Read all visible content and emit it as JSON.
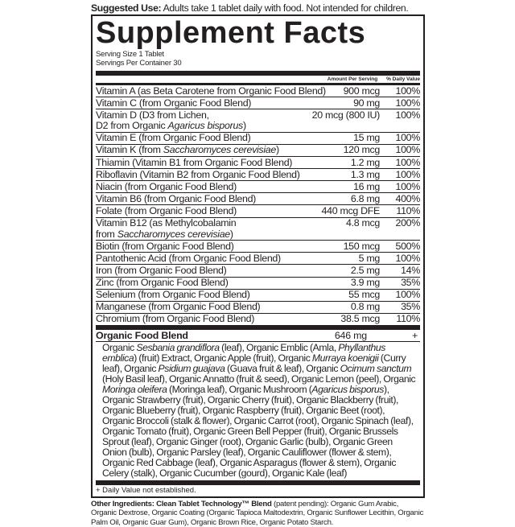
{
  "suggested_use": {
    "label": "Suggested Use:",
    "text": " Adults take 1 tablet daily with food. Not intended for children."
  },
  "title": "Supplement Facts",
  "serving_size": "Serving Size 1 Tablet",
  "servings_per_container": "Servings Per Container 30",
  "header": {
    "amount": "Amount Per Serving",
    "dv": "% Daily Value"
  },
  "rows": [
    {
      "name": "Vitamin A (as Beta Carotene from Organic Food Blend)",
      "amount": "900 mcg",
      "dv": "100%"
    },
    {
      "name": "Vitamin C (from Organic Food Blend)",
      "amount": "90 mg",
      "dv": "100%"
    },
    {
      "name": "Vitamin D (D3 from Lichen,",
      "name2": "D2 from Organic ",
      "name2i": "Agaricus bisporus",
      "name2e": ")",
      "amount": "20 mcg (800 IU)",
      "dv": "100%"
    },
    {
      "name": "Vitamin E (from Organic Food Blend)",
      "amount": "15 mg",
      "dv": "100%"
    },
    {
      "name": "Vitamin K (from ",
      "namei": "Saccharomyces cerevisiae",
      "namee": ")",
      "amount": "120 mcg",
      "dv": "100%"
    },
    {
      "name": "Thiamin (Vitamin B1 from Organic Food Blend)",
      "amount": "1.2 mg",
      "dv": "100%"
    },
    {
      "name": "Riboflavin (Vitamin B2 from Organic Food Blend)",
      "amount": "1.3 mg",
      "dv": "100%"
    },
    {
      "name": "Niacin (from Organic Food Blend)",
      "amount": "16 mg",
      "dv": "100%"
    },
    {
      "name": "Vitamin B6 (from Organic Food Blend)",
      "amount": "6.8 mg",
      "dv": "400%"
    },
    {
      "name": "Folate (from Organic Food Blend)",
      "amount": "440 mcg DFE",
      "dv": "110%"
    },
    {
      "name": "Vitamin B12 (as Methylcobalamin",
      "name2": "from ",
      "name2i": "Saccharomyces cerevisiae",
      "name2e": ")",
      "amount": "4.8 mcg",
      "dv": "200%"
    },
    {
      "name": "Biotin (from Organic Food Blend)",
      "amount": "150 mcg",
      "dv": "500%"
    },
    {
      "name": "Pantothenic Acid (from Organic Food Blend)",
      "amount": "5 mg",
      "dv": "100%"
    },
    {
      "name": "Iron (from Organic Food Blend)",
      "amount": "2.5 mg",
      "dv": "14%"
    },
    {
      "name": "Zinc (from Organic Food Blend)",
      "amount": "3.9 mg",
      "dv": "35%"
    },
    {
      "name": "Selenium (from Organic Food Blend)",
      "amount": "55 mcg",
      "dv": "100%"
    },
    {
      "name": "Manganese (from Organic Food Blend)",
      "amount": "0.8 mg",
      "dv": "35%"
    },
    {
      "name": "Chromium (from Organic Food Blend)",
      "amount": "38.5 mcg",
      "dv": "110%"
    }
  ],
  "blend": {
    "name": "Organic Food Blend",
    "amount": "646 mg",
    "dv": "+",
    "text_parts": [
      [
        "Organic ",
        0
      ],
      [
        "Sesbania grandiflora",
        1
      ],
      [
        " (leaf), Organic Emblic (Amla, ",
        0
      ],
      [
        "Phyllanthus emblica",
        1
      ],
      [
        ") (fruit) Extract, Organic Apple (fruit), Organic ",
        0
      ],
      [
        "Murraya koenigii",
        1
      ],
      [
        " (Curry leaf), Organic ",
        0
      ],
      [
        "Psidium guajava",
        1
      ],
      [
        " (Guava fruit & leaf), Organic ",
        0
      ],
      [
        "Ocimum sanctum",
        1
      ],
      [
        " (Holy Basil leaf), Organic Annatto (fruit & seed), Organic Lemon (peel), Organic ",
        0
      ],
      [
        "Moringa oleifera",
        1
      ],
      [
        " (Moringa leaf), Organic Mushroom (",
        0
      ],
      [
        "Agaricus bisporus",
        1
      ],
      [
        "), Organic Strawberry (fruit), Organic Cherry (fruit), Organic Blackberry (fruit), Organic Blueberry (fruit), Organic Raspberry (fruit), Organic Beet (root), Organic Broccoli (stalk & flower), Organic Carrot (root), Organic Spinach (leaf), Organic Tomato (fruit), Organic Green Bell Pepper (fruit), Organic Brussels Sprout (leaf), Organic Ginger (root), Organic Garlic (bulb), Organic Green Onion (bulb), Organic Parsley (leaf), Organic Cauliflower (flower & stem), Organic Red Cabbage (leaf), Organic Asparagus (flower & stem), Organic Celery (stalk), Organic Cucumber (gourd), Organic Kale (leaf)",
        0
      ]
    ]
  },
  "footnote": "+ Daily Value not established.",
  "other_ingredients": {
    "label": "Other Ingredients: Clean Tablet Technology™ Blend",
    "text": " (patent pending): Organic Gum Arabic, Organic Dextrose, Organic Coating (Organic Tapioca Maltodextrin, Organic Sunflower Lecithin, Organic Palm Oil, Organic Guar Gum), Organic Brown Rice, Organic Potato Starch."
  }
}
